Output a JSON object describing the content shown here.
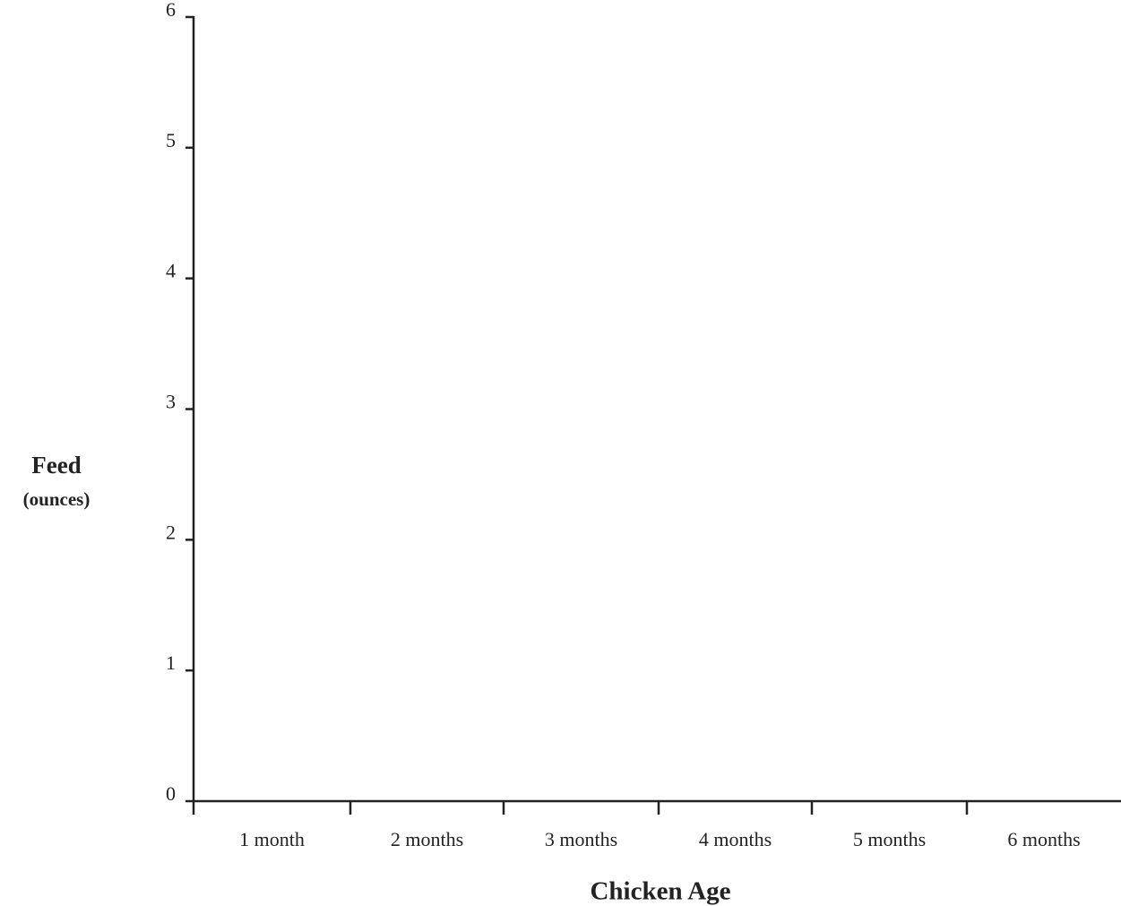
{
  "chart_data": {
    "type": "bar",
    "x_label": "Chicken Age",
    "y_label": "Feed",
    "y_label_unit": "(ounces)",
    "categories": [
      "1 month",
      "2 months",
      "3 months",
      "4 months",
      "5 months",
      "6 months"
    ],
    "ylim": [
      0,
      6
    ],
    "yticks": [
      0,
      1,
      2,
      3,
      4,
      5,
      6
    ],
    "grid": false
  }
}
